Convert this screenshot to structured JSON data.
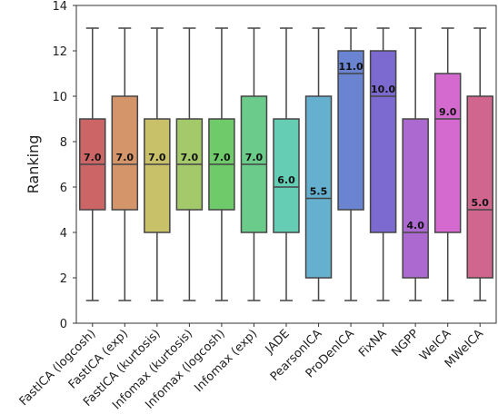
{
  "chart_data": {
    "type": "box",
    "ylabel": "Ranking",
    "ylim": [
      0,
      14
    ],
    "yticks": [
      0,
      2,
      4,
      6,
      8,
      10,
      12,
      14
    ],
    "grid": false,
    "categories": [
      "FastICA (logcosh)",
      "FastICA (exp)",
      "FastICA (kurtosis)",
      "Infomax (kurtosis)",
      "Infomax (logcosh)",
      "Infomax (exp)",
      "JADE",
      "PearsonICA",
      "ProDenICA",
      "FixNA",
      "NGPP",
      "WeICA",
      "MWeICA"
    ],
    "boxes": [
      {
        "min": 1,
        "q1": 5,
        "median": 7.0,
        "q3": 9,
        "max": 13,
        "median_label": "7.0",
        "color": "#cc6666"
      },
      {
        "min": 1,
        "q1": 5,
        "median": 7.0,
        "q3": 10,
        "max": 13,
        "median_label": "7.0",
        "color": "#d4956a"
      },
      {
        "min": 1,
        "q1": 4,
        "median": 7.0,
        "q3": 9,
        "max": 13,
        "median_label": "7.0",
        "color": "#c9c06a"
      },
      {
        "min": 1,
        "q1": 5,
        "median": 7.0,
        "q3": 9,
        "max": 13,
        "median_label": "7.0",
        "color": "#a3c96a"
      },
      {
        "min": 1,
        "q1": 5,
        "median": 7.0,
        "q3": 9,
        "max": 13,
        "median_label": "7.0",
        "color": "#6fcb6a"
      },
      {
        "min": 1,
        "q1": 4,
        "median": 7.0,
        "q3": 10,
        "max": 13,
        "median_label": "7.0",
        "color": "#6acb8a"
      },
      {
        "min": 1,
        "q1": 4,
        "median": 6.0,
        "q3": 9,
        "max": 13,
        "median_label": "6.0",
        "color": "#66cdb5"
      },
      {
        "min": 1,
        "q1": 2,
        "median": 5.5,
        "q3": 10,
        "max": 13,
        "median_label": "5.5",
        "color": "#65afcf"
      },
      {
        "min": 1,
        "q1": 5,
        "median": 11.0,
        "q3": 12,
        "max": 13,
        "median_label": "11.0",
        "color": "#6a84d1"
      },
      {
        "min": 1,
        "q1": 4,
        "median": 10.0,
        "q3": 12,
        "max": 13,
        "median_label": "10.0",
        "color": "#7d6ad1"
      },
      {
        "min": 1,
        "q1": 2,
        "median": 4.0,
        "q3": 9,
        "max": 13,
        "median_label": "4.0",
        "color": "#ac6ad1"
      },
      {
        "min": 1,
        "q1": 4,
        "median": 9.0,
        "q3": 11,
        "max": 13,
        "median_label": "9.0",
        "color": "#d46acf"
      },
      {
        "min": 1,
        "q1": 2,
        "median": 5.0,
        "q3": 10,
        "max": 13,
        "median_label": "5.0",
        "color": "#d0658e"
      }
    ]
  }
}
